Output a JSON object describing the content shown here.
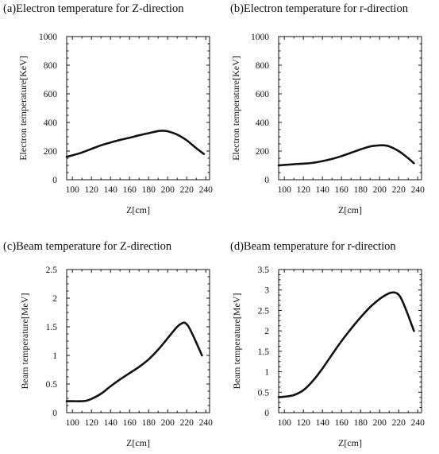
{
  "chart_data": [
    {
      "id": "a",
      "type": "line",
      "title": "(a)Electron temperature for Z-direction",
      "xlabel": "Z[cm]",
      "ylabel": "Electron temperature[KeV]",
      "xlim": [
        94,
        244
      ],
      "ylim": [
        0,
        1000
      ],
      "xticks": [
        100,
        120,
        140,
        160,
        180,
        200,
        220,
        240
      ],
      "yticks": [
        0,
        200,
        400,
        600,
        800,
        1000
      ],
      "grid": false,
      "line_color": "#111111",
      "series": [
        {
          "x": [
            94,
            100,
            110,
            120,
            130,
            140,
            150,
            160,
            170,
            180,
            190,
            195,
            200,
            210,
            220,
            230,
            238
          ],
          "y": [
            160,
            170,
            190,
            215,
            240,
            260,
            278,
            293,
            310,
            325,
            340,
            342,
            338,
            315,
            275,
            220,
            180
          ]
        }
      ]
    },
    {
      "id": "b",
      "type": "line",
      "title": "(b)Electron temperature for r-direction",
      "xlabel": "Z[cm]",
      "ylabel": "Electron temperature[KeV]",
      "xlim": [
        94,
        244
      ],
      "ylim": [
        0,
        1000
      ],
      "xticks": [
        100,
        120,
        140,
        160,
        180,
        200,
        220,
        240
      ],
      "yticks": [
        0,
        200,
        400,
        600,
        800,
        1000
      ],
      "grid": false,
      "line_color": "#111111",
      "series": [
        {
          "x": [
            94,
            100,
            110,
            120,
            130,
            140,
            150,
            160,
            170,
            180,
            190,
            200,
            205,
            210,
            220,
            230,
            236
          ],
          "y": [
            100,
            103,
            108,
            112,
            118,
            130,
            145,
            165,
            188,
            212,
            232,
            240,
            240,
            233,
            200,
            150,
            115
          ]
        }
      ]
    },
    {
      "id": "c",
      "type": "line",
      "title": "(c)Beam temperature for Z-direction",
      "xlabel": "Z[cm]",
      "ylabel": "Beam temperature[MeV]",
      "xlim": [
        94,
        244
      ],
      "ylim": [
        0,
        2.5
      ],
      "xticks": [
        100,
        120,
        140,
        160,
        180,
        200,
        220,
        240
      ],
      "yticks": [
        0,
        0.5,
        1,
        1.5,
        2,
        2.5
      ],
      "grid": false,
      "line_color": "#111111",
      "series": [
        {
          "x": [
            94,
            100,
            110,
            115,
            120,
            130,
            140,
            150,
            160,
            170,
            180,
            190,
            200,
            210,
            215,
            218,
            222,
            228,
            236
          ],
          "y": [
            0.2,
            0.2,
            0.2,
            0.21,
            0.24,
            0.33,
            0.46,
            0.58,
            0.69,
            0.8,
            0.93,
            1.1,
            1.3,
            1.5,
            1.56,
            1.57,
            1.5,
            1.3,
            1.0
          ]
        }
      ]
    },
    {
      "id": "d",
      "type": "line",
      "title": "(d)Beam temperature for r-direction",
      "xlabel": "Z[cm]",
      "ylabel": "Beam temperature[MeV]",
      "xlim": [
        94,
        244
      ],
      "ylim": [
        0,
        3.5
      ],
      "xticks": [
        100,
        120,
        140,
        160,
        180,
        200,
        220,
        240
      ],
      "yticks": [
        0,
        0.5,
        1,
        1.5,
        2,
        2.5,
        3,
        3.5
      ],
      "grid": false,
      "line_color": "#111111",
      "series": [
        {
          "x": [
            94,
            100,
            110,
            120,
            130,
            140,
            150,
            160,
            170,
            180,
            190,
            200,
            210,
            215,
            218,
            222,
            228,
            236
          ],
          "y": [
            0.38,
            0.39,
            0.43,
            0.55,
            0.78,
            1.08,
            1.42,
            1.75,
            2.05,
            2.33,
            2.58,
            2.78,
            2.92,
            2.94,
            2.92,
            2.82,
            2.5,
            2.0
          ]
        }
      ]
    }
  ]
}
